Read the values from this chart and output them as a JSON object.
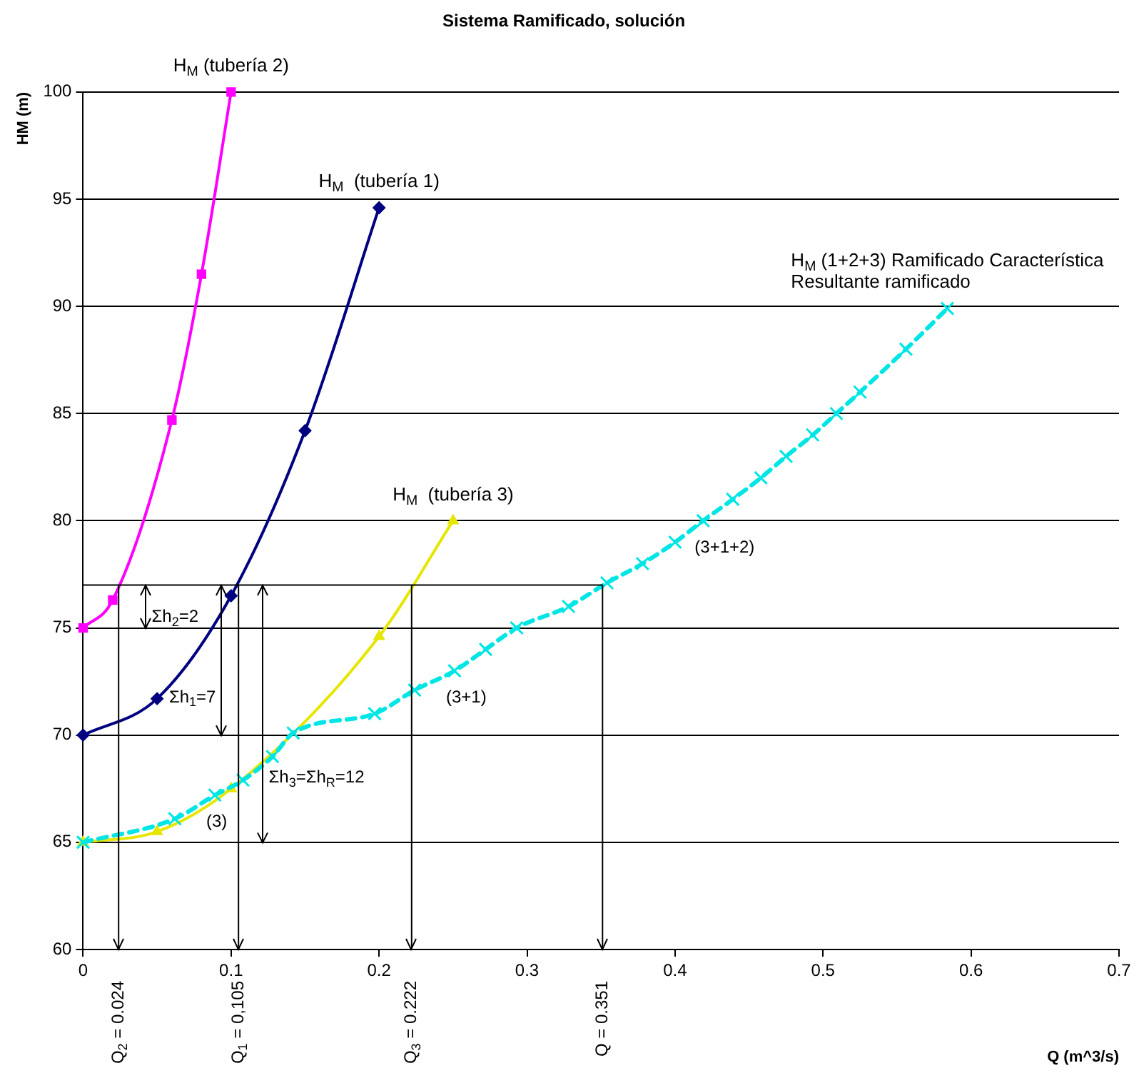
{
  "chart_data": {
    "type": "line",
    "title": "Sistema Ramificado, solución",
    "xlabel": "Q (m^3/s)",
    "ylabel": "HM (m)",
    "xlim": [
      0,
      0.7
    ],
    "xticks": [
      0,
      0.1,
      0.2,
      0.3,
      0.4,
      0.5,
      0.6,
      0.7
    ],
    "ylim": [
      60,
      100
    ],
    "yticks": [
      60,
      65,
      70,
      75,
      80,
      85,
      90,
      95,
      100
    ],
    "grid": "y",
    "legend": false,
    "series": [
      {
        "name": "H$_{M}$ (tubería 2)",
        "color": "#ff00ff",
        "marker": "square",
        "line_style": "solid",
        "x": [
          0,
          0.02,
          0.06,
          0.08,
          0.1
        ],
        "values": [
          75,
          76.3,
          84.7,
          91.5,
          100
        ]
      },
      {
        "name": "H$_{M}$  (tubería 1)",
        "color": "#000080",
        "marker": "diamond",
        "line_style": "solid",
        "x": [
          0,
          0.05,
          0.1,
          0.15,
          0.2
        ],
        "values": [
          70,
          71.7,
          76.5,
          84.2,
          94.6
        ]
      },
      {
        "name": "H$_{M}$  (tubería 3)",
        "color": "#e6e600",
        "marker": "triangle",
        "line_style": "solid",
        "x": [
          0,
          0.05,
          0.1,
          0.2,
          0.25
        ],
        "values": [
          65,
          65.5,
          67.5,
          74.6,
          80
        ]
      },
      {
        "name": "H$_{M}$ (1+2+3) Ramificado Característica Resultante ramificado",
        "color": "#00e5e5",
        "marker": "cross",
        "line_style": "dashed",
        "x": [
          0,
          0.062,
          0.089,
          0.108,
          0.128,
          0.142,
          0.197,
          0.224,
          0.251,
          0.272,
          0.293,
          0.328,
          0.354,
          0.378,
          0.4,
          0.419,
          0.439,
          0.458,
          0.475,
          0.493,
          0.509,
          0.525,
          0.556,
          0.584
        ],
        "values": [
          65,
          66.1,
          67.2,
          67.9,
          69,
          70.1,
          71,
          72.1,
          73,
          74,
          75,
          76,
          77.1,
          78,
          79,
          80,
          81,
          82,
          83,
          84,
          85,
          86,
          88,
          89.9
        ]
      }
    ],
    "ref_lines": [
      {
        "axis": "y",
        "value": 77
      },
      {
        "axis": "x",
        "value": 0.024,
        "label": "Q$_{2}$ = 0.024"
      },
      {
        "axis": "x",
        "value": 0.105,
        "label": "Q$_{1}$ = 0,105"
      },
      {
        "axis": "x",
        "value": 0.222,
        "label": "Q$_{3}$ = 0.222"
      },
      {
        "axis": "x",
        "value": 0.351,
        "label": "Q = 0.351"
      }
    ],
    "annotations": [
      "Σh$_{2}$=2",
      "Σh$_{1}$=7",
      "Σh$_{3}$=Σh$_{R}$=12",
      {
        "text": "(3)",
        "x": 0.089,
        "y": 67.2
      },
      {
        "text": "(3+1)",
        "x": 0.251,
        "y": 73
      },
      {
        "text": "(3+1+2)",
        "x": 0.419,
        "y": 80
      }
    ]
  }
}
